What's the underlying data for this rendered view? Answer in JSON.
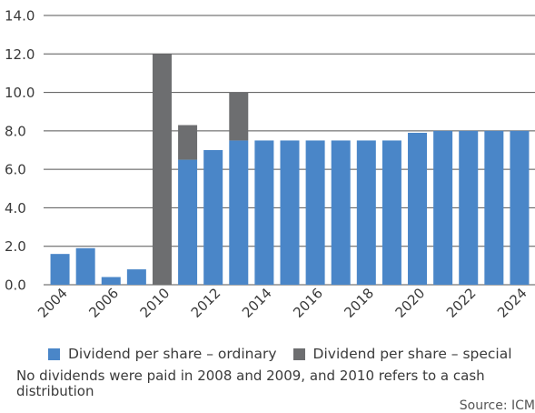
{
  "chart_data": {
    "type": "bar",
    "stacked": true,
    "title": "",
    "xlabel": "",
    "ylabel": "",
    "ylim": [
      0,
      14
    ],
    "y_ticks": [
      "0.0",
      "2.0",
      "4.0",
      "6.0",
      "8.0",
      "10.0",
      "12.0",
      "14.0"
    ],
    "grid": "horizontal",
    "categories": [
      "2004",
      "2005",
      "2006",
      "2007",
      "2010",
      "2011",
      "2012",
      "2013",
      "2014",
      "2015",
      "2016",
      "2017",
      "2018",
      "2019",
      "2020",
      "2021",
      "2022",
      "2023",
      "2024"
    ],
    "x_tick_labels": [
      "2004",
      "2006",
      "2010",
      "2012",
      "2014",
      "2016",
      "2018",
      "2020",
      "2022",
      "2024"
    ],
    "series": [
      {
        "name": "Dividend per share – ordinary",
        "color": "#4a86c8",
        "values": [
          1.6,
          1.9,
          0.4,
          0.8,
          0.0,
          6.5,
          7.0,
          7.5,
          7.5,
          7.5,
          7.5,
          7.5,
          7.5,
          7.5,
          7.9,
          8.0,
          8.0,
          8.0,
          8.0
        ]
      },
      {
        "name": "Dividend per share – special",
        "color": "#6d6e70",
        "values": [
          0,
          0,
          0,
          0,
          12.0,
          1.8,
          0,
          2.5,
          0,
          0,
          0,
          0,
          0,
          0,
          0,
          0,
          0,
          0,
          0
        ]
      }
    ],
    "legend_position": "bottom"
  },
  "note": "No dividends were paid in 2008 and 2009, and 2010 refers to a cash distribution",
  "source": "Source: ICM"
}
